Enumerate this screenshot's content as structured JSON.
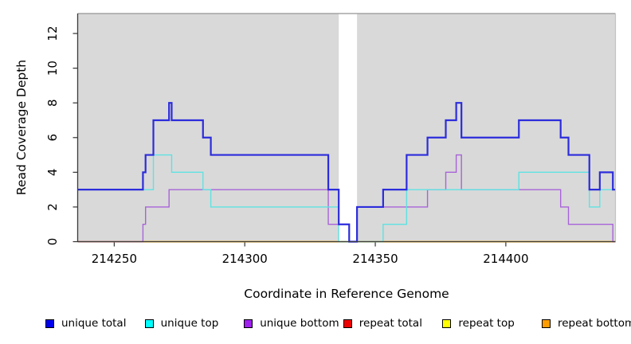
{
  "figure": {
    "background": "#ffffff",
    "plot_background": "#d9d9d9"
  },
  "chart_data": {
    "type": "line",
    "subtype": "step",
    "title": "",
    "xlabel": "Coordinate in Reference Genome",
    "ylabel": "Read Coverage Depth",
    "xlim": [
      214236,
      214442
    ],
    "ylim": [
      0,
      13.15
    ],
    "x_ticks": [
      214250,
      214300,
      214350,
      214400
    ],
    "y_ticks": [
      0,
      2,
      4,
      6,
      8,
      10,
      12
    ],
    "grid": false,
    "plot_bg": "#d9d9d9",
    "gap_band": {
      "x0": 214336,
      "x1": 214343,
      "color": "#ffffff"
    },
    "legend_position": "bottom",
    "legend": [
      {
        "label": "unique total",
        "color": "#0000ee"
      },
      {
        "label": "unique top",
        "color": "#00ffff"
      },
      {
        "label": "unique bottom",
        "color": "#a020f0"
      },
      {
        "label": "repeat total",
        "color": "#ee0000"
      },
      {
        "label": "repeat top",
        "color": "#ffff00"
      },
      {
        "label": "repeat bottom",
        "color": "#ff9d00"
      }
    ],
    "series": [
      {
        "name": "unique total",
        "line_color": "#2c2cdc",
        "width": 2.2,
        "z": 6,
        "steps": [
          [
            214236,
            3
          ],
          [
            214261,
            4
          ],
          [
            214262,
            5
          ],
          [
            214265,
            7
          ],
          [
            214271,
            8
          ],
          [
            214272,
            7
          ],
          [
            214284,
            6
          ],
          [
            214287,
            5
          ],
          [
            214332,
            3
          ],
          [
            214336,
            1
          ],
          [
            214340,
            0
          ],
          [
            214343,
            2
          ],
          [
            214353,
            3
          ],
          [
            214362,
            5
          ],
          [
            214370,
            6
          ],
          [
            214377,
            7
          ],
          [
            214381,
            8
          ],
          [
            214383,
            6
          ],
          [
            214405,
            7
          ],
          [
            214421,
            6
          ],
          [
            214424,
            5
          ],
          [
            214432,
            3
          ],
          [
            214436,
            4
          ],
          [
            214441,
            3
          ]
        ]
      },
      {
        "name": "unique top",
        "line_color": "#5fe2e2",
        "width": 1.4,
        "z": 5,
        "steps": [
          [
            214236,
            3
          ],
          [
            214265,
            5
          ],
          [
            214272,
            4
          ],
          [
            214284,
            3
          ],
          [
            214287,
            2
          ],
          [
            214336,
            0
          ],
          [
            214353,
            1
          ],
          [
            214362,
            3
          ],
          [
            214405,
            4
          ],
          [
            214432,
            2
          ],
          [
            214436,
            3
          ]
        ]
      },
      {
        "name": "unique bottom",
        "line_color": "#a863d9",
        "width": 1.4,
        "z": 4,
        "steps": [
          [
            214236,
            0
          ],
          [
            214261,
            1
          ],
          [
            214262,
            2
          ],
          [
            214271,
            3
          ],
          [
            214332,
            1
          ],
          [
            214340,
            0
          ],
          [
            214343,
            2
          ],
          [
            214370,
            3
          ],
          [
            214377,
            4
          ],
          [
            214381,
            5
          ],
          [
            214383,
            3
          ],
          [
            214421,
            2
          ],
          [
            214424,
            1
          ],
          [
            214441,
            0
          ]
        ]
      },
      {
        "name": "repeat total",
        "line_color": "#e84a80",
        "width": 1.4,
        "z": 1,
        "steps": [
          [
            214236,
            0
          ]
        ]
      },
      {
        "name": "repeat top",
        "line_color": "#ffff00",
        "width": 1.4,
        "z": 2,
        "steps": [
          [
            214236,
            0
          ]
        ]
      },
      {
        "name": "repeat bottom",
        "line_color": "#ff9d00",
        "width": 1.6,
        "z": 3,
        "steps": [
          [
            214236,
            0
          ]
        ]
      }
    ]
  }
}
